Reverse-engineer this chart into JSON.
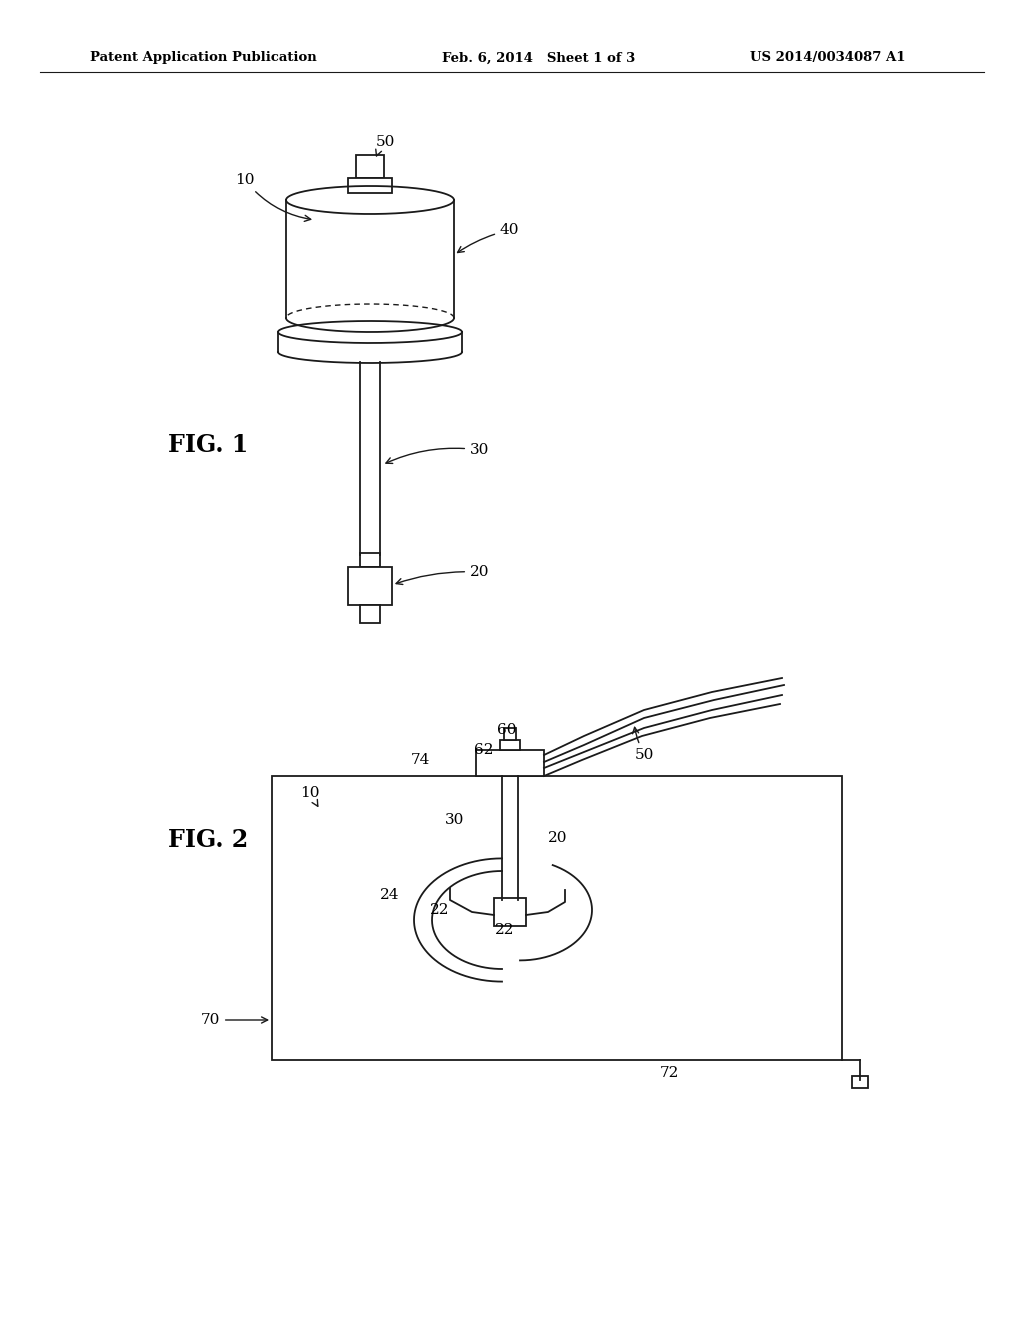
{
  "bg_color": "#ffffff",
  "header_text": "Patent Application Publication",
  "header_date": "Feb. 6, 2014   Sheet 1 of 3",
  "header_patent": "US 2014/0034087 A1",
  "fig1_label": "FIG. 1",
  "fig2_label": "FIG. 2",
  "color": "#1a1a1a",
  "lw": 1.3
}
